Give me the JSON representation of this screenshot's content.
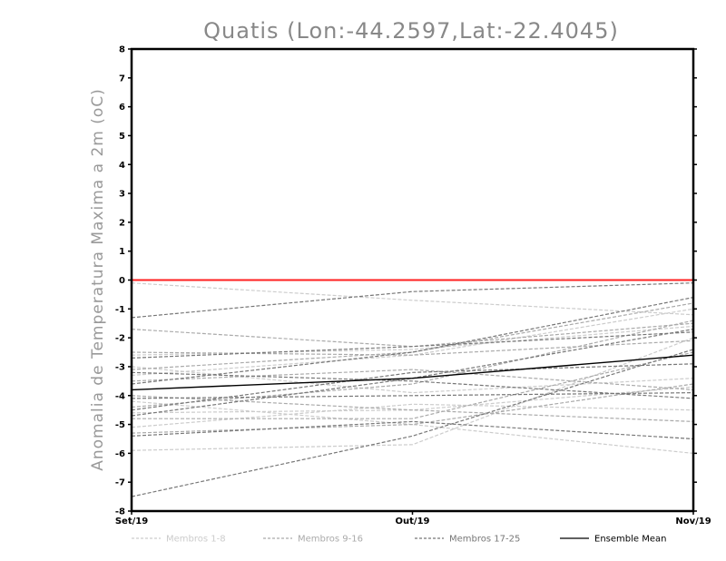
{
  "chart_data": {
    "type": "line",
    "title": "Quatis (Lon:-44.2597,Lat:-22.4045)",
    "ylabel": "Anomalia de Temperatura Maxima a 2m (oC)",
    "xlabel": "",
    "categories": [
      "Set/19",
      "Out/19",
      "Nov/19"
    ],
    "ylim": [
      -8,
      8
    ],
    "yticks": [
      8,
      7,
      6,
      5,
      4,
      3,
      2,
      1,
      0,
      -1,
      -2,
      -3,
      -4,
      -5,
      -6,
      -7,
      -8
    ],
    "reference_line": {
      "value": 0,
      "color": "#ff2020"
    },
    "legend": [
      {
        "label": "Membros 1-8",
        "color": "#cccccc",
        "dashed": true
      },
      {
        "label": "Membros 9-16",
        "color": "#aaaaaa",
        "dashed": true
      },
      {
        "label": "Membros 17-25",
        "color": "#777777",
        "dashed": true
      },
      {
        "label": "Ensemble Mean",
        "color": "#000000",
        "dashed": false
      }
    ],
    "series": [
      {
        "group": 1,
        "values": [
          -0.1,
          -0.7,
          -1.2
        ]
      },
      {
        "group": 1,
        "values": [
          -3.0,
          -3.9,
          -3.4
        ]
      },
      {
        "group": 1,
        "values": [
          -4.2,
          -5.0,
          -6.0
        ]
      },
      {
        "group": 1,
        "values": [
          -4.6,
          -4.5,
          -3.7
        ]
      },
      {
        "group": 1,
        "values": [
          -5.1,
          -4.3,
          -4.5
        ]
      },
      {
        "group": 1,
        "values": [
          -5.9,
          -5.7,
          -2.0
        ]
      },
      {
        "group": 1,
        "values": [
          -2.6,
          -2.4,
          -1.6
        ]
      },
      {
        "group": 1,
        "values": [
          -3.3,
          -2.6,
          -1.0
        ]
      },
      {
        "group": 2,
        "values": [
          -1.7,
          -2.3,
          -1.5
        ]
      },
      {
        "group": 2,
        "values": [
          -2.5,
          -2.6,
          -2.1
        ]
      },
      {
        "group": 2,
        "values": [
          -3.1,
          -2.5,
          -0.8
        ]
      },
      {
        "group": 2,
        "values": [
          -3.5,
          -3.1,
          -3.8
        ]
      },
      {
        "group": 2,
        "values": [
          -4.0,
          -4.5,
          -4.9
        ]
      },
      {
        "group": 2,
        "values": [
          -4.4,
          -3.6,
          -1.4
        ]
      },
      {
        "group": 2,
        "values": [
          -4.8,
          -4.8,
          -2.5
        ]
      },
      {
        "group": 2,
        "values": [
          -5.3,
          -5.0,
          -3.6
        ]
      },
      {
        "group": 3,
        "values": [
          -1.3,
          -0.4,
          -0.1
        ]
      },
      {
        "group": 3,
        "values": [
          -2.7,
          -2.3,
          -1.8
        ]
      },
      {
        "group": 3,
        "values": [
          -3.2,
          -3.5,
          -4.1
        ]
      },
      {
        "group": 3,
        "values": [
          -3.6,
          -2.5,
          -0.6
        ]
      },
      {
        "group": 3,
        "values": [
          -4.5,
          -3.2,
          -2.9
        ]
      },
      {
        "group": 3,
        "values": [
          -5.4,
          -4.9,
          -5.5
        ]
      },
      {
        "group": 3,
        "values": [
          -7.5,
          -5.4,
          -2.4
        ]
      },
      {
        "group": 3,
        "values": [
          -4.1,
          -4.0,
          -3.9
        ]
      },
      {
        "group": 3,
        "values": [
          -4.7,
          -3.4,
          -1.7
        ]
      }
    ],
    "ensemble_mean": [
      -3.8,
      -3.4,
      -2.6
    ]
  }
}
